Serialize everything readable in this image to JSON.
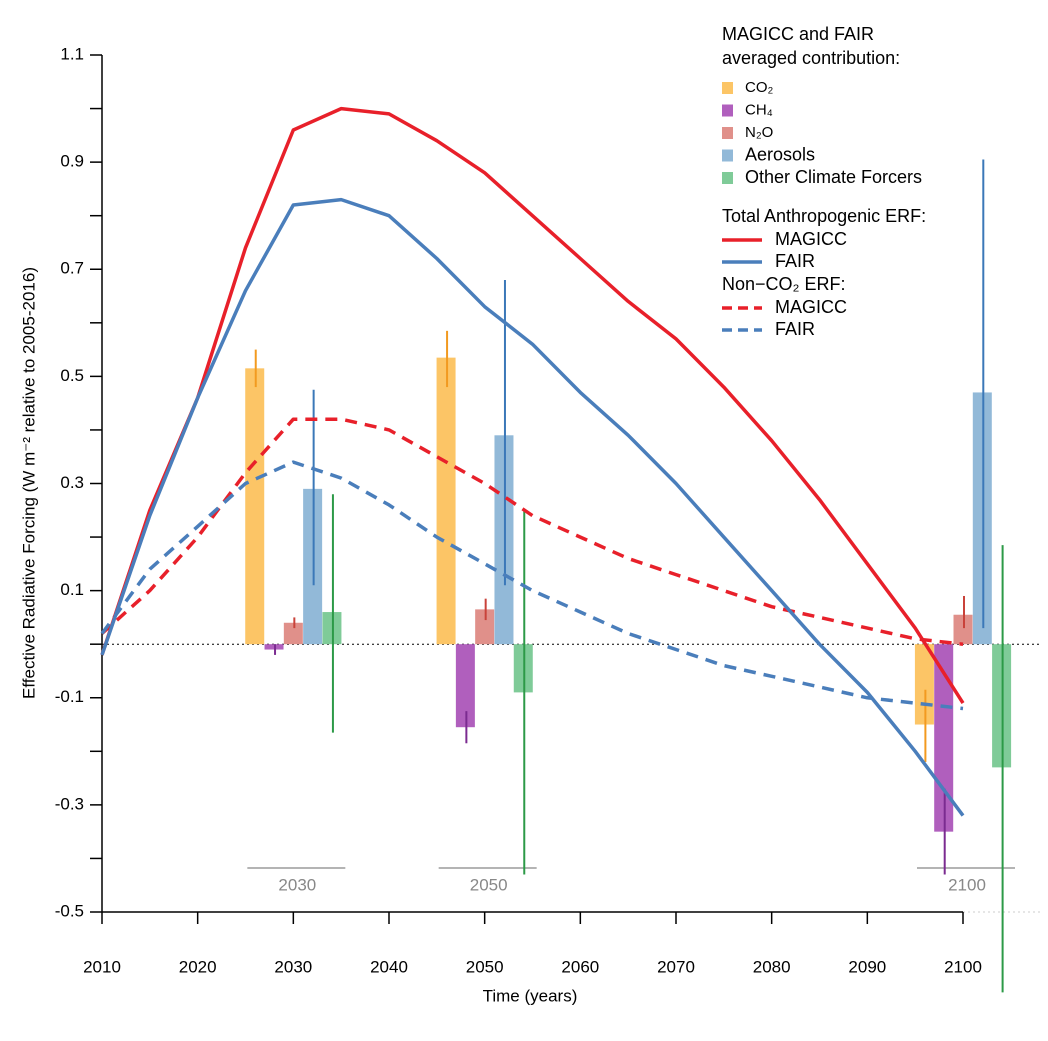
{
  "chart_data": {
    "type": "line",
    "xlabel": "Time (years)",
    "ylabel": "Effective Radiative Forcing (W m⁻² relative to 2005-2016)",
    "xlim": [
      2010,
      2100
    ],
    "ylim": [
      -0.5,
      1.1
    ],
    "xticks": [
      2010,
      2020,
      2030,
      2040,
      2050,
      2060,
      2070,
      2080,
      2090,
      2100
    ],
    "yticks": [
      -0.5,
      -0.3,
      -0.1,
      0.1,
      0.3,
      0.5,
      0.7,
      0.9,
      1.1
    ],
    "yminor": [
      -0.4,
      -0.2,
      0,
      0.2,
      0.4,
      0.6,
      0.8,
      1.0
    ],
    "zero_line": true,
    "x": [
      2010,
      2015,
      2020,
      2025,
      2030,
      2035,
      2040,
      2045,
      2050,
      2055,
      2060,
      2065,
      2070,
      2075,
      2080,
      2085,
      2090,
      2095,
      2100
    ],
    "total": {
      "title": "Total Anthropogenic ERF:",
      "series": [
        {
          "name": "MAGICC",
          "color": "#e8202a",
          "dash": false,
          "values": [
            -0.02,
            0.25,
            0.46,
            0.74,
            0.96,
            1.0,
            0.99,
            0.94,
            0.88,
            0.8,
            0.72,
            0.64,
            0.57,
            0.48,
            0.38,
            0.27,
            0.15,
            0.03,
            -0.11
          ]
        },
        {
          "name": "FAIR",
          "color": "#4a7ebb",
          "dash": false,
          "values": [
            -0.02,
            0.24,
            0.46,
            0.66,
            0.82,
            0.83,
            0.8,
            0.72,
            0.63,
            0.56,
            0.47,
            0.39,
            0.3,
            0.2,
            0.1,
            0.0,
            -0.09,
            -0.2,
            -0.32
          ]
        }
      ]
    },
    "non_co2": {
      "title": "Non−CO₂ ERF:",
      "series": [
        {
          "name": "MAGICC",
          "color": "#e8202a",
          "dash": true,
          "values": [
            0.02,
            0.1,
            0.2,
            0.32,
            0.42,
            0.42,
            0.4,
            0.35,
            0.3,
            0.24,
            0.2,
            0.16,
            0.13,
            0.1,
            0.07,
            0.05,
            0.03,
            0.01,
            0.0
          ]
        },
        {
          "name": "FAIR",
          "color": "#4a7ebb",
          "dash": true,
          "values": [
            0.02,
            0.14,
            0.22,
            0.3,
            0.34,
            0.31,
            0.26,
            0.2,
            0.15,
            0.1,
            0.06,
            0.02,
            -0.01,
            -0.04,
            -0.06,
            -0.08,
            -0.1,
            -0.11,
            -0.12
          ]
        }
      ]
    },
    "bars": {
      "title": [
        "MAGICC and FAIR",
        "averaged contribution:"
      ],
      "groups": [
        2030,
        2050,
        2100
      ],
      "series": [
        {
          "name": "CO₂",
          "color": "#fcc566",
          "error_color": "#f29a1f",
          "values": [
            0.515,
            0.535,
            -0.15
          ],
          "errors": [
            [
              0.48,
              0.55
            ],
            [
              0.48,
              0.585
            ],
            [
              -0.22,
              -0.085
            ]
          ]
        },
        {
          "name": "CH₄",
          "color": "#b05fbd",
          "error_color": "#7b2b90",
          "values": [
            -0.01,
            -0.155,
            -0.35
          ],
          "errors": [
            [
              -0.02,
              0.0
            ],
            [
              -0.185,
              -0.125
            ],
            [
              -0.43,
              -0.27
            ]
          ]
        },
        {
          "name": "N₂O",
          "color": "#e0908a",
          "error_color": "#c9423a",
          "values": [
            0.04,
            0.065,
            0.055
          ],
          "errors": [
            [
              0.03,
              0.05
            ],
            [
              0.045,
              0.085
            ],
            [
              0.03,
              0.09
            ]
          ]
        },
        {
          "name": "Aerosols",
          "color": "#92b9d8",
          "error_color": "#3b78b8",
          "values": [
            0.29,
            0.39,
            0.47
          ],
          "errors": [
            [
              0.11,
              0.475
            ],
            [
              0.11,
              0.68
            ],
            [
              0.03,
              0.905
            ]
          ]
        },
        {
          "name": "Other Climate Forcers",
          "color": "#7fcb98",
          "error_color": "#2c9a47",
          "values": [
            0.06,
            -0.09,
            -0.23
          ],
          "errors": [
            [
              -0.165,
              0.28
            ],
            [
              -0.43,
              0.25
            ],
            [
              -0.65,
              0.185
            ]
          ]
        }
      ]
    }
  }
}
